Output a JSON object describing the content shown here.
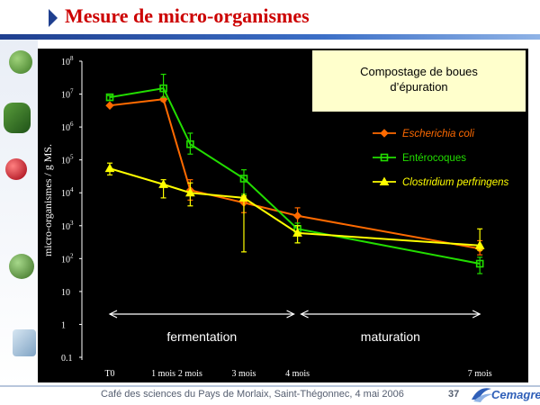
{
  "slide": {
    "title": "Mesure de micro-organismes",
    "footer": "Café des sciences du Pays de Morlaix, Saint-Thégonnec, 4 mai 2006",
    "page_number": "37",
    "logo_text": "Cemagref"
  },
  "colors": {
    "title": "#cc0000",
    "chart_background": "#000000",
    "caption_box": "#ffffcc",
    "escherichia": "#ff6a00",
    "enterocoques": "#22dd00",
    "clostridium": "#ffff00"
  },
  "chart_data": {
    "type": "line",
    "caption": "Compostage de boues\nd’épuration",
    "ylabel": "micro-organismes / g MS.",
    "y_scale": "log",
    "ylim": [
      0.1,
      100000000
    ],
    "y_ticks": [
      {
        "value": 100000000,
        "mantissa": "10",
        "exp": "8"
      },
      {
        "value": 10000000,
        "mantissa": "10",
        "exp": "7"
      },
      {
        "value": 1000000,
        "mantissa": "10",
        "exp": "6"
      },
      {
        "value": 100000,
        "mantissa": "10",
        "exp": "5"
      },
      {
        "value": 10000,
        "mantissa": "10",
        "exp": "4"
      },
      {
        "value": 1000,
        "mantissa": "10",
        "exp": "3"
      },
      {
        "value": 100,
        "mantissa": "10",
        "exp": "2"
      },
      {
        "value": 10,
        "mantissa": "10",
        "exp": ""
      },
      {
        "value": 1,
        "mantissa": "1",
        "exp": ""
      },
      {
        "value": 0.1,
        "mantissa": "0.1",
        "exp": ""
      }
    ],
    "x_unit": "mois",
    "xlim": [
      0,
      7.3
    ],
    "x_ticks": [
      {
        "value": 0,
        "label": "T0"
      },
      {
        "value": 1,
        "label": "1 mois"
      },
      {
        "value": 1.5,
        "label": "2 mois"
      },
      {
        "value": 2.5,
        "label": "3 mois"
      },
      {
        "value": 3.5,
        "label": "4 mois"
      },
      {
        "value": 6.9,
        "label": "7 mois"
      }
    ],
    "phases": [
      {
        "label": "fermentation",
        "start": 0,
        "end": 3.5
      },
      {
        "label": "maturation",
        "start": 3.5,
        "end": 6.9
      }
    ],
    "legend_position": "right",
    "series": [
      {
        "name": "Escherichia coli",
        "italic": true,
        "color": "#ff6a00",
        "marker": "diamond",
        "points": [
          {
            "x": 0,
            "y": 4500000
          },
          {
            "x": 1,
            "y": 7000000,
            "lo": 6000000,
            "hi": 8000000
          },
          {
            "x": 1.5,
            "y": 12000,
            "lo": 6000,
            "hi": 25000
          },
          {
            "x": 2.5,
            "y": 5000,
            "lo": 2500,
            "hi": 9000
          },
          {
            "x": 3.5,
            "y": 2000,
            "lo": 500,
            "hi": 3500
          },
          {
            "x": 6.9,
            "y": 200,
            "lo": 130,
            "hi": 350
          }
        ]
      },
      {
        "name": "Entérocoques",
        "italic": false,
        "color": "#22dd00",
        "marker": "square",
        "points": [
          {
            "x": 0,
            "y": 8000000,
            "lo": 6500000,
            "hi": 9000000
          },
          {
            "x": 1,
            "y": 15000000,
            "lo": 8000000,
            "hi": 40000000
          },
          {
            "x": 1.5,
            "y": 300000,
            "lo": 150000,
            "hi": 650000
          },
          {
            "x": 2.5,
            "y": 27000,
            "lo": 9000,
            "hi": 50000
          },
          {
            "x": 3.5,
            "y": 800,
            "lo": 300,
            "hi": 1200
          },
          {
            "x": 6.9,
            "y": 70,
            "lo": 35,
            "hi": 110
          }
        ]
      },
      {
        "name": "Clostridium perfringens",
        "italic": true,
        "color": "#ffff00",
        "marker": "triangle",
        "points": [
          {
            "x": 0,
            "y": 55000,
            "lo": 35000,
            "hi": 80000
          },
          {
            "x": 1,
            "y": 18000,
            "lo": 7000,
            "hi": 25000
          },
          {
            "x": 1.5,
            "y": 10000,
            "lo": 4000,
            "hi": 20000
          },
          {
            "x": 2.5,
            "y": 7000,
            "lo": 160,
            "hi": 8000
          },
          {
            "x": 3.5,
            "y": 600,
            "lo": 300,
            "hi": 1000
          },
          {
            "x": 6.9,
            "y": 250,
            "lo": 180,
            "hi": 800
          }
        ]
      }
    ]
  }
}
